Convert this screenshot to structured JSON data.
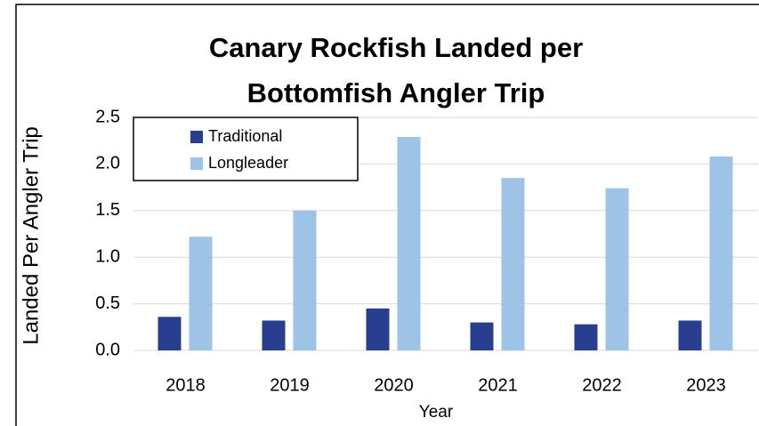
{
  "chart_data": {
    "type": "bar",
    "title": [
      "Canary Rockfish Landed per",
      "Bottomfish Angler Trip"
    ],
    "x_label": "Year",
    "y_label": "Landed Per Angler Trip",
    "categories": [
      "2018",
      "2019",
      "2020",
      "2021",
      "2022",
      "2023"
    ],
    "series": [
      {
        "name": "Traditional",
        "color": "#283f8f",
        "values": [
          0.36,
          0.32,
          0.45,
          0.3,
          0.28,
          0.32
        ]
      },
      {
        "name": "Longleader",
        "color": "#9dc3e6",
        "values": [
          1.22,
          1.5,
          2.29,
          1.85,
          1.74,
          2.08
        ]
      }
    ],
    "ylim": [
      0,
      2.5
    ],
    "yticks": [
      {
        "value": 0,
        "label": "0.0"
      },
      0.5,
      {
        "value": 1,
        "label": "1.0"
      },
      1.5,
      {
        "value": 2,
        "label": "2.0"
      },
      2.5
    ],
    "grid": true,
    "legend": "upper left"
  }
}
